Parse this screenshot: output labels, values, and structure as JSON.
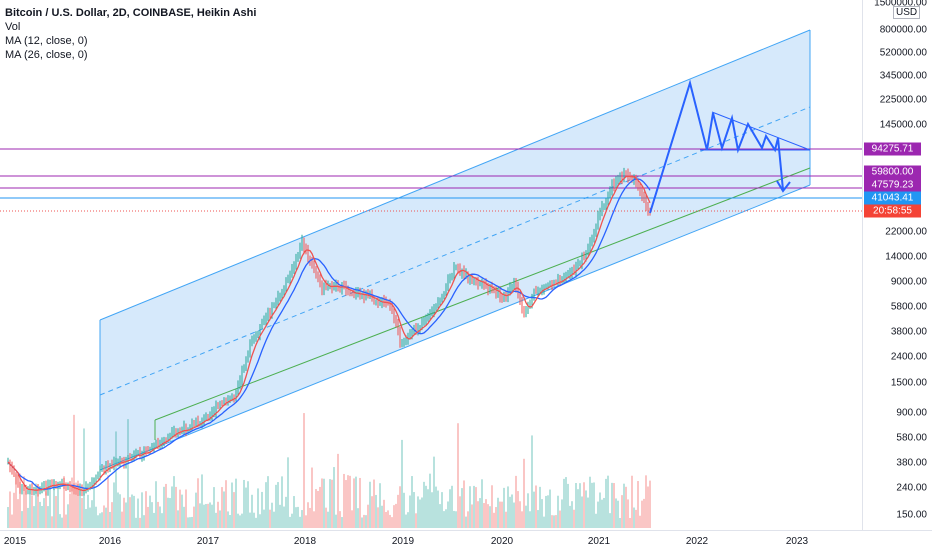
{
  "legend": {
    "title": "Bitcoin / U.S. Dollar, 2D, COINBASE, Heikin Ashi",
    "vol": "Vol",
    "ma12": "MA (12, close, 0)",
    "ma26": "MA (26, close, 0)"
  },
  "price_axis": {
    "currency": "USD",
    "ticks": [
      "1500000.00",
      "800000.00",
      "520000.00",
      "345000.00",
      "225000.00",
      "145000.00",
      "22000.00",
      "14000.00",
      "9000.00",
      "5800.00",
      "3800.00",
      "2400.00",
      "1500.00",
      "900.00",
      "580.00",
      "380.00",
      "240.00",
      "150.00"
    ],
    "tags": {
      "line1": "94275.71",
      "line2": "59800.00",
      "line3": "47579.23",
      "line4": "41043.41",
      "countdown": "20:58:55"
    }
  },
  "time_axis": {
    "labels": [
      "2015",
      "2016",
      "2017",
      "2018",
      "2019",
      "2020",
      "2021",
      "2022",
      "2023"
    ]
  },
  "colors": {
    "channel_fill": "#d6e9fb",
    "channel_line": "#42a5f5",
    "horizontal_line": "#9c27b0",
    "projection": "#2962ff",
    "candle_up": "#26a69a",
    "candle_down": "#ef5350",
    "ma12": "#ef5350",
    "ma26": "#2962ff",
    "support_line": "#4caf50",
    "current_price_tag": "#2196f3",
    "countdown_tag": "#f44336"
  }
}
